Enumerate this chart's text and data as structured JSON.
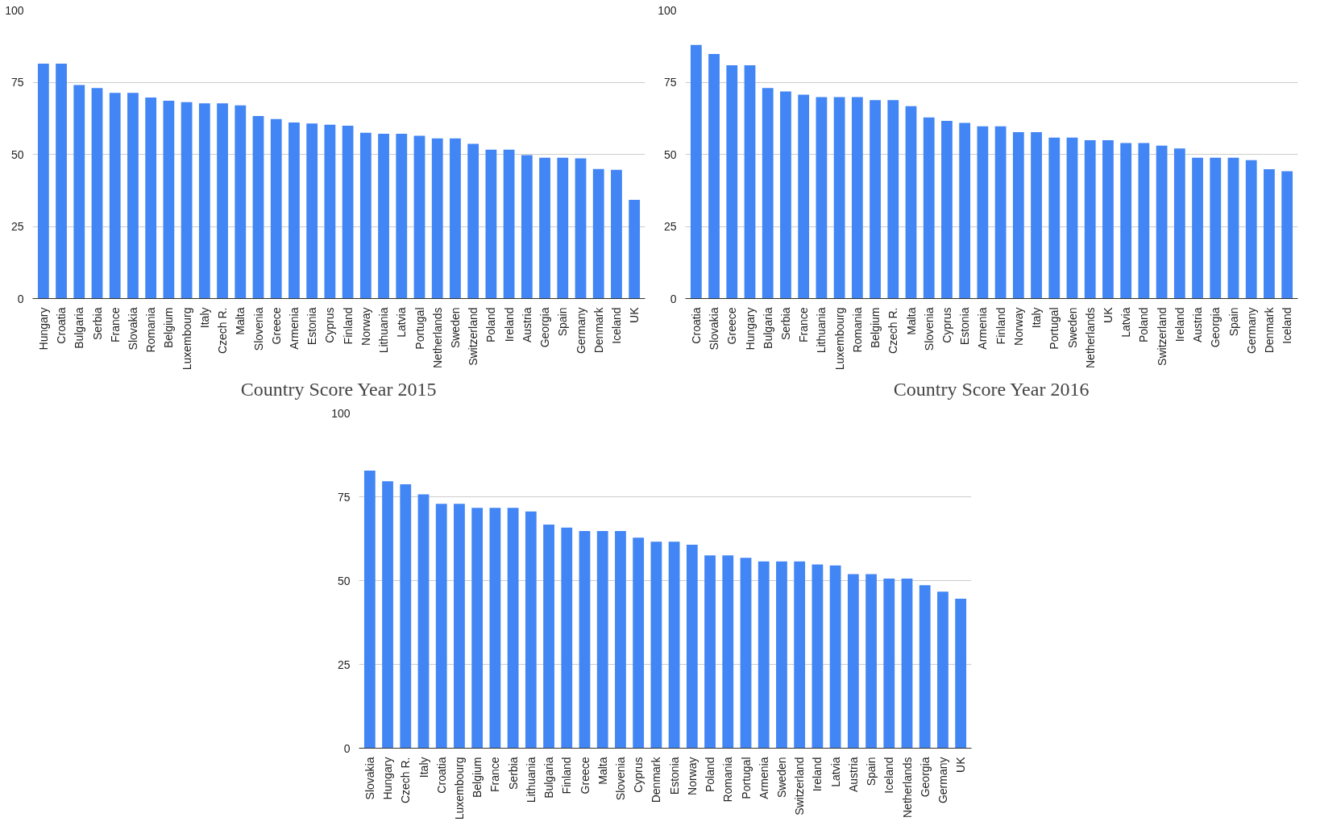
{
  "chart_data": [
    {
      "type": "bar",
      "title": "Country Score Year 2015",
      "categories": [
        "Hungary",
        "Croatia",
        "Bulgaria",
        "Serbia",
        "France",
        "Slovakia",
        "Romania",
        "Belgium",
        "Luxembourg",
        "Italy",
        "Czech R.",
        "Malta",
        "Slovenia",
        "Greece",
        "Armenia",
        "Estonia",
        "Cyprus",
        "Finland",
        "Norway",
        "Lithuania",
        "Latvia",
        "Portugal",
        "Netherlands",
        "Sweden",
        "Switzerland",
        "Poland",
        "Ireland",
        "Austria",
        "Georgia",
        "Spain",
        "Germany",
        "Denmark",
        "Iceland",
        "UK"
      ],
      "values": [
        81.4,
        81.4,
        74,
        73,
        71.3,
        71.3,
        69.7,
        68.6,
        68.1,
        67.7,
        67.7,
        67,
        63.3,
        62.2,
        61,
        60.7,
        60.3,
        59.9,
        57.5,
        57.1,
        57.1,
        56.4,
        55.5,
        55.5,
        53.6,
        51.6,
        51.6,
        49.7,
        48.8,
        48.8,
        48.6,
        44.9,
        44.6,
        34.2
      ],
      "color": "#4285f4",
      "ylim": [
        0,
        100
      ],
      "yticks": [
        0,
        25,
        50,
        75,
        100
      ],
      "grid": "y"
    },
    {
      "type": "bar",
      "title": "Country Score Year 2016",
      "categories": [
        "Croatia",
        "Slovakia",
        "Greece",
        "Hungary",
        "Bulgaria",
        "Serbia",
        "France",
        "Lithuania",
        "Luxembourg",
        "Romania",
        "Belgium",
        "Czech R.",
        "Malta",
        "Slovenia",
        "Cyprus",
        "Estonia",
        "Armenia",
        "Finland",
        "Norway",
        "Italy",
        "Portugal",
        "Sweden",
        "Netherlands",
        "UK",
        "Latvia",
        "Poland",
        "Switzerland",
        "Ireland",
        "Austria",
        "Georgia",
        "Spain",
        "Germany",
        "Denmark",
        "Iceland"
      ],
      "values": [
        87.9,
        84.8,
        80.9,
        80.9,
        73,
        71.8,
        70.7,
        69.8,
        69.8,
        69.8,
        68.8,
        68.8,
        66.7,
        62.8,
        61.6,
        60.9,
        59.7,
        59.7,
        57.7,
        57.7,
        55.8,
        55.8,
        54.9,
        54.9,
        53.9,
        53.9,
        53,
        52,
        48.8,
        48.8,
        48.8,
        48,
        44.8,
        44.1
      ],
      "color": "#4285f4",
      "ylim": [
        0,
        100
      ],
      "yticks": [
        0,
        25,
        50,
        75,
        100
      ],
      "grid": "y"
    },
    {
      "type": "bar",
      "categories": [
        "Slovakia",
        "Hungary",
        "Czech R.",
        "Italy",
        "Croatia",
        "Luxembourg",
        "Belgium",
        "France",
        "Serbia",
        "Lithuania",
        "Bulgaria",
        "Finland",
        "Greece",
        "Malta",
        "Slovenia",
        "Cyprus",
        "Denmark",
        "Estonia",
        "Norway",
        "Poland",
        "Romania",
        "Portugal",
        "Armenia",
        "Sweden",
        "Switzerland",
        "Ireland",
        "Latvia",
        "Austria",
        "Spain",
        "Iceland",
        "Netherlands",
        "Georgia",
        "Germany",
        "UK"
      ],
      "values": [
        82.8,
        79.6,
        78.7,
        75.7,
        72.9,
        72.9,
        71.7,
        71.7,
        71.7,
        70.6,
        66.7,
        65.8,
        64.8,
        64.8,
        64.8,
        62.8,
        61.6,
        61.6,
        60.7,
        57.5,
        57.5,
        56.8,
        55.7,
        55.7,
        55.7,
        54.8,
        54.5,
        51.9,
        51.9,
        50.6,
        50.6,
        48.6,
        46.7,
        44.6
      ],
      "color": "#4285f4",
      "ylim": [
        0,
        100
      ],
      "yticks": [
        0,
        25,
        50,
        75,
        100
      ],
      "grid": "y"
    }
  ]
}
